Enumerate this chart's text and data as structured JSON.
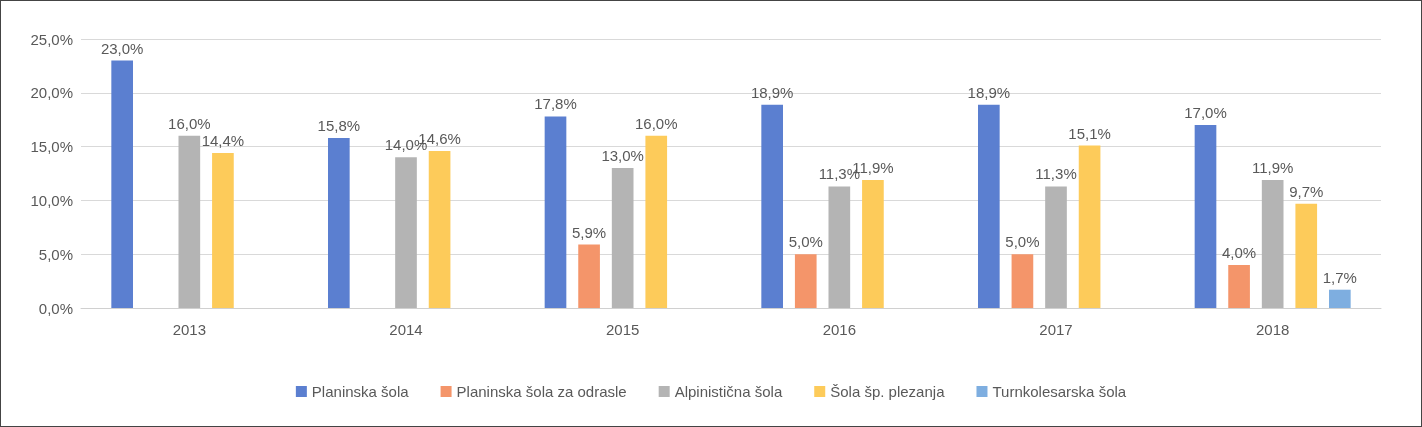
{
  "chart_data": {
    "type": "bar",
    "categories": [
      "2013",
      "2014",
      "2015",
      "2016",
      "2017",
      "2018"
    ],
    "series": [
      {
        "name": "Planinska šola",
        "color": "#5b7fd0",
        "values": [
          23.0,
          15.8,
          17.8,
          18.9,
          18.9,
          17.0
        ],
        "value_labels": [
          "23,0%",
          "15,8%",
          "17,8%",
          "18,9%",
          "18,9%",
          "17,0%"
        ]
      },
      {
        "name": "Planinska šola za odrasle",
        "color": "#f4956a",
        "values": [
          null,
          null,
          5.9,
          5.0,
          5.0,
          4.0
        ],
        "value_labels": [
          null,
          null,
          "5,9%",
          "5,0%",
          "5,0%",
          "4,0%"
        ]
      },
      {
        "name": "Alpinistična šola",
        "color": "#b4b4b4",
        "values": [
          16.0,
          14.0,
          13.0,
          11.3,
          11.3,
          11.9
        ],
        "value_labels": [
          "16,0%",
          "14,0%",
          "13,0%",
          "11,3%",
          "11,3%",
          "11,9%"
        ]
      },
      {
        "name": "Šola šp. plezanja",
        "color": "#fdcb5a",
        "values": [
          14.4,
          14.6,
          16.0,
          11.9,
          15.1,
          9.7
        ],
        "value_labels": [
          "14,4%",
          "14,6%",
          "16,0%",
          "11,9%",
          "15,1%",
          "9,7%"
        ]
      },
      {
        "name": "Turnkolesarska šola",
        "color": "#7eaee0",
        "values": [
          null,
          null,
          null,
          null,
          null,
          1.7
        ],
        "value_labels": [
          null,
          null,
          null,
          null,
          null,
          "1,7%"
        ]
      }
    ],
    "ylim": [
      0,
      25
    ],
    "yticks": [
      {
        "value": 0,
        "label": "0,0%"
      },
      {
        "value": 5,
        "label": "5,0%"
      },
      {
        "value": 10,
        "label": "10,0%"
      },
      {
        "value": 15,
        "label": "15,0%"
      },
      {
        "value": 20,
        "label": "20,0%"
      },
      {
        "value": 25,
        "label": "25,0%"
      }
    ],
    "grid": "y",
    "legend": "bottom"
  }
}
